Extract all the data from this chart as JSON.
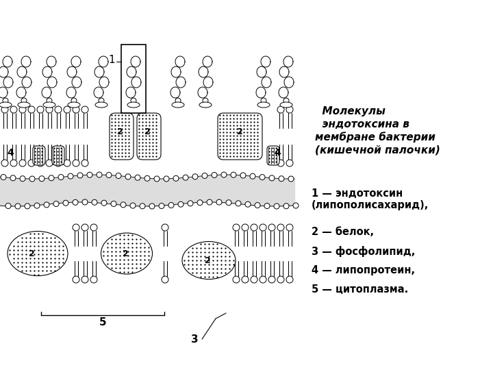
{
  "title": "  Молекулы\n  эндотоксина в\nмембране бактерии\n(кишечной палочки)",
  "legend_lines": [
    "1 — эндотоксин\n(липополисахарид),",
    "2 — белок,",
    "3 — фосфолипид,",
    "4 — липопротеин,",
    "5 — цитоплазма."
  ],
  "bg_color": "#ffffff",
  "fig_w": 7.2,
  "fig_h": 5.4,
  "dpi": 100
}
